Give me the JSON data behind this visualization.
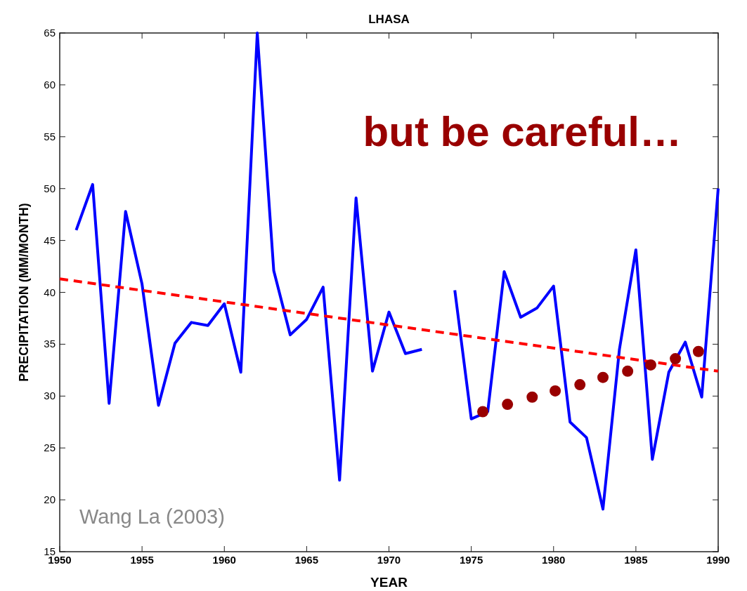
{
  "chart_data": {
    "type": "line",
    "title": "LHASA",
    "xlabel": "YEAR",
    "ylabel": "PRECIPITATION (MM/MONTH)",
    "annotations": [
      "but be careful…",
      "Wang La (2003)"
    ],
    "x": [
      1951,
      1952,
      1953,
      1954,
      1955,
      1956,
      1957,
      1958,
      1959,
      1960,
      1961,
      1962,
      1963,
      1964,
      1965,
      1966,
      1967,
      1968,
      1969,
      1970,
      1971,
      1972,
      1973,
      1974,
      1975,
      1976,
      1977,
      1978,
      1979,
      1980,
      1981,
      1982,
      1983,
      1984,
      1985,
      1986,
      1987,
      1988,
      1989,
      1990
    ],
    "series": [
      {
        "color": "#0000ff",
        "line_style": "solid",
        "values": [
          46,
          50.4,
          29.3,
          47.8,
          40.8,
          29.1,
          35.1,
          37.1,
          36.8,
          38.9,
          32.3,
          65,
          42.1,
          35.9,
          37.4,
          40.5,
          21.9,
          49.1,
          32.4,
          38.1,
          34.1,
          34.5,
          null,
          40.2,
          27.8,
          28.5,
          42,
          37.6,
          38.5,
          40.6,
          27.5,
          26,
          19.1,
          34.5,
          44.1,
          23.9,
          32.3,
          35.2,
          29.9,
          50
        ]
      },
      {
        "color": "#ff0000",
        "line_style": "dashed",
        "x": [
          1950,
          1990
        ],
        "values": [
          41.3,
          32.4
        ]
      },
      {
        "type": "scatter",
        "color": "#990000",
        "marker": "circle",
        "x": [
          1975.7,
          1977.2,
          1978.7,
          1980.1,
          1981.6,
          1983.0,
          1984.5,
          1985.9,
          1987.4,
          1988.8
        ],
        "values": [
          28.5,
          29.2,
          29.9,
          30.5,
          31.1,
          31.8,
          32.4,
          33.0,
          33.6,
          34.3
        ]
      }
    ],
    "xlim": [
      1950,
      1990
    ],
    "xticks": [
      1950,
      1955,
      1960,
      1965,
      1970,
      1975,
      1980,
      1985,
      1990
    ],
    "ylim": [
      15,
      65
    ],
    "yticks": [
      15,
      20,
      25,
      30,
      35,
      40,
      45,
      50,
      55,
      60,
      65
    ],
    "grid": false
  }
}
